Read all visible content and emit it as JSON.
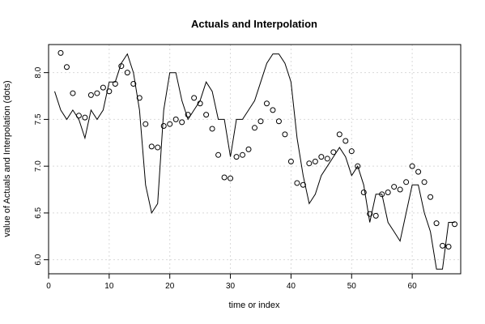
{
  "chart_data": {
    "type": "line",
    "title": "Actuals and Interpolation",
    "xlabel": "time or index",
    "ylabel": "value of Actuals and Interpolation (dots)",
    "xlim": [
      0,
      68
    ],
    "ylim": [
      5.85,
      8.3
    ],
    "x_ticks": [
      0,
      10,
      20,
      30,
      40,
      50,
      60
    ],
    "y_ticks": [
      6.0,
      6.5,
      7.0,
      7.5,
      8.0
    ],
    "x_tick_labels": [
      "0",
      "10",
      "20",
      "30",
      "40",
      "50",
      "60"
    ],
    "y_tick_labels": [
      "6.0",
      "6.5",
      "7.0",
      "7.5",
      "8.0"
    ],
    "grid": true,
    "series": [
      {
        "style": "line",
        "color": "#000000",
        "x": [
          1,
          2,
          3,
          4,
          5,
          6,
          7,
          8,
          9,
          10,
          11,
          12,
          13,
          14,
          15,
          16,
          17,
          18,
          19,
          20,
          21,
          22,
          23,
          24,
          25,
          26,
          27,
          28,
          29,
          30,
          31,
          32,
          33,
          34,
          35,
          36,
          37,
          38,
          39,
          40,
          41,
          42,
          43,
          44,
          45,
          46,
          47,
          48,
          49,
          50,
          51,
          52,
          53,
          54,
          55,
          56,
          57,
          58,
          59,
          60,
          61,
          62,
          63,
          64,
          65,
          66,
          67
        ],
        "values": [
          7.8,
          7.6,
          7.5,
          7.6,
          7.5,
          7.3,
          7.6,
          7.5,
          7.6,
          7.9,
          7.9,
          8.1,
          8.2,
          8.0,
          7.6,
          6.8,
          6.5,
          6.6,
          7.6,
          8.0,
          8.0,
          7.7,
          7.5,
          7.6,
          7.7,
          7.9,
          7.8,
          7.5,
          7.5,
          7.1,
          7.5,
          7.5,
          7.6,
          7.7,
          7.9,
          8.1,
          8.2,
          8.2,
          8.1,
          7.9,
          7.3,
          6.9,
          6.6,
          6.7,
          6.9,
          7.0,
          7.1,
          7.2,
          7.1,
          6.9,
          7.0,
          6.8,
          6.4,
          6.7,
          6.7,
          6.4,
          6.3,
          6.2,
          6.5,
          6.8,
          6.8,
          6.5,
          6.3,
          5.9,
          5.9,
          6.4,
          6.4
        ]
      },
      {
        "style": "points",
        "color": "#000000",
        "x": [
          2,
          3,
          4,
          5,
          6,
          7,
          8,
          9,
          10,
          11,
          12,
          13,
          14,
          15,
          16,
          17,
          18,
          19,
          20,
          21,
          22,
          23,
          24,
          25,
          26,
          27,
          28,
          29,
          30,
          31,
          32,
          33,
          34,
          35,
          36,
          37,
          38,
          39,
          40,
          41,
          42,
          43,
          44,
          45,
          46,
          47,
          48,
          49,
          50,
          51,
          52,
          53,
          54,
          55,
          56,
          57,
          58,
          59,
          60,
          61,
          62,
          63,
          64,
          65,
          66,
          67
        ],
        "values": [
          8.21,
          8.06,
          7.78,
          7.54,
          7.52,
          7.76,
          7.78,
          7.84,
          7.8,
          7.88,
          8.07,
          8.0,
          7.88,
          7.73,
          7.45,
          7.21,
          7.2,
          7.43,
          7.45,
          7.5,
          7.47,
          7.55,
          7.73,
          7.67,
          7.55,
          7.4,
          7.12,
          6.88,
          6.87,
          7.1,
          7.12,
          7.18,
          7.41,
          7.48,
          7.67,
          7.6,
          7.48,
          7.34,
          7.05,
          6.82,
          6.8,
          7.03,
          7.05,
          7.1,
          7.08,
          7.15,
          7.34,
          7.27,
          7.16,
          7.0,
          6.72,
          6.49,
          6.47,
          6.7,
          6.72,
          6.78,
          6.75,
          6.83,
          7.0,
          6.94,
          6.83,
          6.67,
          6.39,
          6.15,
          6.14,
          6.38
        ]
      }
    ]
  }
}
